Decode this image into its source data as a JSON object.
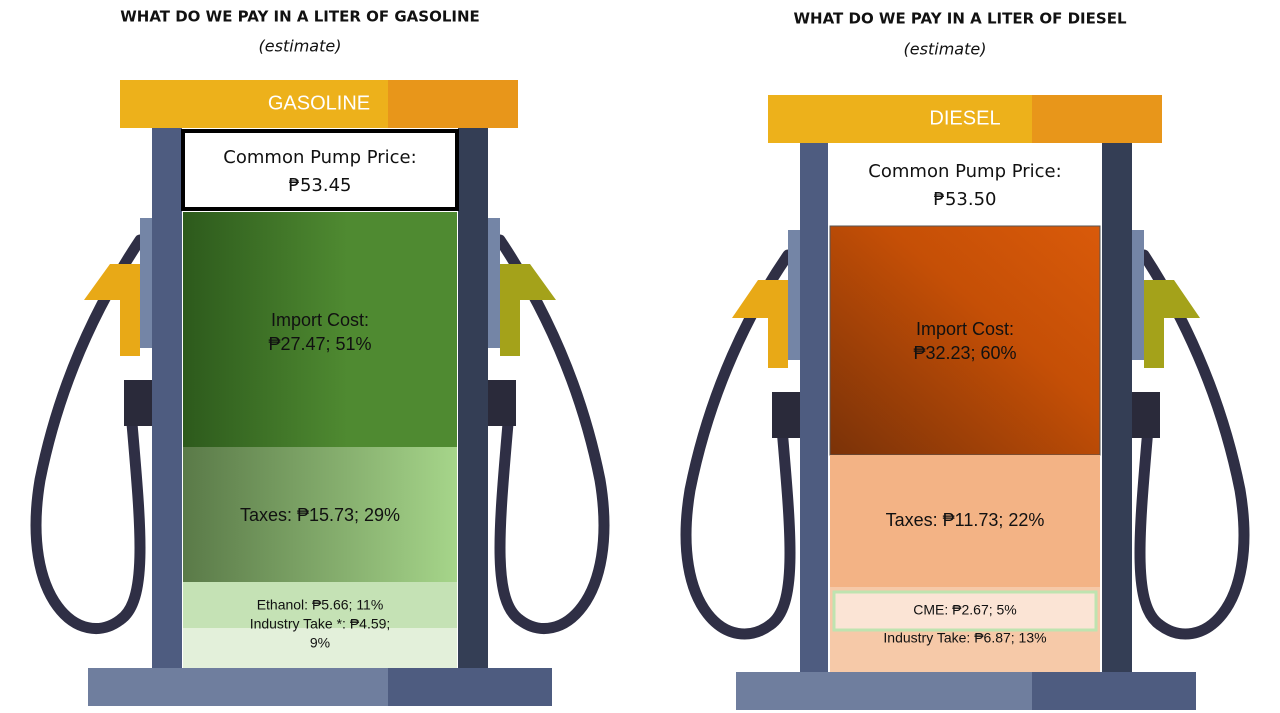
{
  "left": {
    "title": "WHAT DO WE PAY IN A LITER OF GASOLINE",
    "subtitle": "(estimate)",
    "banner": "GASOLINE",
    "price_label": "Common Pump Price:",
    "price": "₱53.45",
    "segments": [
      {
        "lines": [
          "Import Cost:",
          "₱27.47; 51%"
        ]
      },
      {
        "lines": [
          "Taxes: ₱15.73; 29%"
        ]
      },
      {
        "lines": [
          "Ethanol: ₱5.66; 11%"
        ]
      },
      {
        "lines": [
          "Industry Take *: ₱4.59;",
          "9%"
        ]
      }
    ]
  },
  "right": {
    "title": "WHAT DO WE PAY IN A LITER OF DIESEL",
    "subtitle": "(estimate)",
    "banner": "DIESEL",
    "price_label": "Common Pump Price:",
    "price": "₱53.50",
    "segments": [
      {
        "lines": [
          "Import Cost:",
          "₱32.23; 60%"
        ]
      },
      {
        "lines": [
          "Taxes: ₱11.73; 22%"
        ]
      },
      {
        "lines": [
          "CME: ₱2.67; 5%"
        ]
      },
      {
        "lines": [
          "Industry Take: ₱6.87; 13%"
        ]
      }
    ]
  }
}
